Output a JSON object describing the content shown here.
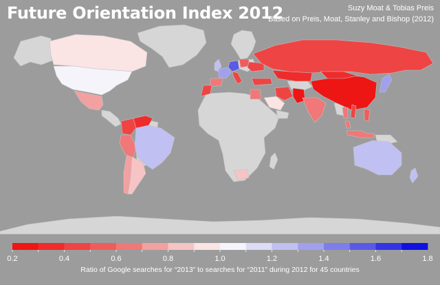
{
  "title": "Future Orientation Index 2012",
  "credits": {
    "line1": "Suzy Moat & Tobias Preis",
    "line2": "Based on Preis, Moat, Stanley and Bishop (2012)"
  },
  "colors": {
    "background": "#9c9c9c",
    "no_data_land": "#d6d6d6",
    "text": "#ffffff"
  },
  "legend": {
    "ticks": [
      "0.2",
      "0.4",
      "0.6",
      "0.8",
      "1.0",
      "1.2",
      "1.4",
      "1.6",
      "1.8"
    ],
    "range": [
      0.2,
      1.8
    ],
    "bins": [
      {
        "min": 0.2,
        "max": 0.3,
        "color": "#ee1515"
      },
      {
        "min": 0.3,
        "max": 0.4,
        "color": "#ef2b2b"
      },
      {
        "min": 0.4,
        "max": 0.5,
        "color": "#ef4444"
      },
      {
        "min": 0.5,
        "max": 0.6,
        "color": "#f05c5c"
      },
      {
        "min": 0.6,
        "max": 0.7,
        "color": "#f07878"
      },
      {
        "min": 0.7,
        "max": 0.8,
        "color": "#f3a0a0"
      },
      {
        "min": 0.8,
        "max": 0.9,
        "color": "#f6c4c4"
      },
      {
        "min": 0.9,
        "max": 1.0,
        "color": "#fae4e4"
      },
      {
        "min": 1.0,
        "max": 1.1,
        "color": "#f4f4fa"
      },
      {
        "min": 1.1,
        "max": 1.2,
        "color": "#dcdcf6"
      },
      {
        "min": 1.2,
        "max": 1.3,
        "color": "#c0c0f2"
      },
      {
        "min": 1.3,
        "max": 1.4,
        "color": "#a0a0ee"
      },
      {
        "min": 1.4,
        "max": 1.5,
        "color": "#7e7eea"
      },
      {
        "min": 1.5,
        "max": 1.6,
        "color": "#5a5ae6"
      },
      {
        "min": 1.6,
        "max": 1.7,
        "color": "#3434e4"
      },
      {
        "min": 1.7,
        "max": 1.8,
        "color": "#1010e0"
      }
    ],
    "caption": "Ratio of Google searches for “2013” to searches for “2011” during 2012 for 45 countries"
  },
  "regions": [
    {
      "name": "canada",
      "color": "#fae4e4"
    },
    {
      "name": "usa",
      "color": "#f4f4fa"
    },
    {
      "name": "mexico",
      "color": "#f3a0a0"
    },
    {
      "name": "colombia",
      "color": "#ef4444"
    },
    {
      "name": "venezuela",
      "color": "#ef2b2b"
    },
    {
      "name": "peru",
      "color": "#f07878"
    },
    {
      "name": "brazil",
      "color": "#c0c0f2"
    },
    {
      "name": "chile",
      "color": "#f3a0a0"
    },
    {
      "name": "argentina",
      "color": "#f6c4c4"
    },
    {
      "name": "uk",
      "color": "#c0c0f2"
    },
    {
      "name": "germany",
      "color": "#5a5ae6"
    },
    {
      "name": "france",
      "color": "#a0a0ee"
    },
    {
      "name": "spain",
      "color": "#f07878"
    },
    {
      "name": "italy",
      "color": "#ef4444"
    },
    {
      "name": "poland",
      "color": "#f05c5c"
    },
    {
      "name": "ukraine",
      "color": "#ef4444"
    },
    {
      "name": "turkey",
      "color": "#ef4444"
    },
    {
      "name": "russia",
      "color": "#ef4444"
    },
    {
      "name": "kazakhstan",
      "color": "#ef2b2b"
    },
    {
      "name": "china",
      "color": "#ee1515"
    },
    {
      "name": "mongolia",
      "color": "#ef2b2b"
    },
    {
      "name": "iran",
      "color": "#ef4444"
    },
    {
      "name": "pakistan",
      "color": "#ee1515"
    },
    {
      "name": "india",
      "color": "#f07878"
    },
    {
      "name": "saudi-arabia",
      "color": "#fae4e4"
    },
    {
      "name": "egypt",
      "color": "#f07878"
    },
    {
      "name": "morocco",
      "color": "#ef4444"
    },
    {
      "name": "vietnam",
      "color": "#ef4444"
    },
    {
      "name": "thailand",
      "color": "#f07878"
    },
    {
      "name": "malaysia",
      "color": "#f07878"
    },
    {
      "name": "indonesia",
      "color": "#f07878"
    },
    {
      "name": "philippines",
      "color": "#f05c5c"
    },
    {
      "name": "japan",
      "color": "#a0a0ee"
    },
    {
      "name": "australia",
      "color": "#c0c0f2"
    },
    {
      "name": "new-zealand",
      "color": "#c0c0f2"
    },
    {
      "name": "south-africa",
      "color": "#f6c4c4"
    }
  ]
}
